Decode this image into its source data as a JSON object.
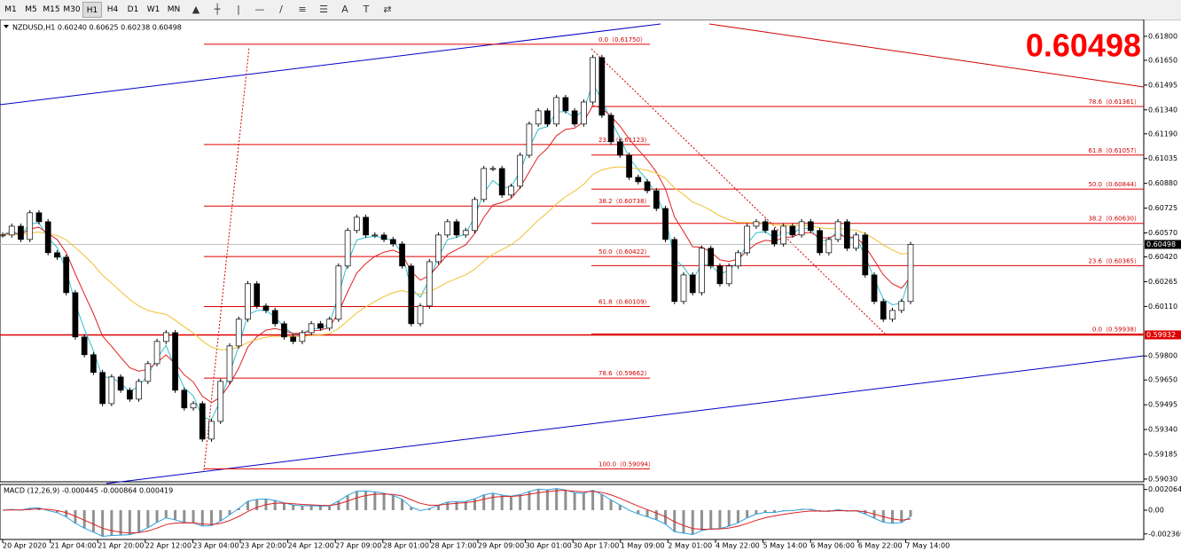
{
  "toolbar": {
    "timeframes": [
      "M1",
      "M5",
      "M15",
      "M30",
      "H1",
      "H4",
      "D1",
      "W1",
      "MN"
    ],
    "active": "H1"
  },
  "header": "NZDUSD,H1  0.60240 0.60625 0.60238 0.60498",
  "big_price": "0.60498",
  "price_axis": {
    "ylim": [
      0.59013,
      0.61905
    ],
    "ticks": [
      {
        "value": 0.618,
        "label": "0.61800"
      },
      {
        "value": 0.6165,
        "label": "0.61650"
      },
      0.61495,
      {
        "value": 0.6134,
        "label": "0.61340"
      },
      {
        "value": 0.6119,
        "label": "0.61190"
      },
      0.61035,
      {
        "value": 0.6088,
        "label": "0.60880"
      },
      0.60725,
      {
        "value": 0.6057,
        "label": "0.60570"
      },
      {
        "value": 0.6042,
        "label": "0.60420"
      },
      0.60265,
      {
        "value": 0.6011,
        "label": "0.60110"
      },
      {
        "value": 0.598,
        "label": "0.59800"
      },
      {
        "value": 0.5965,
        "label": "0.59650"
      },
      0.59495,
      {
        "value": 0.5934,
        "label": "0.59340"
      },
      0.59185,
      {
        "value": 0.5903,
        "label": "0.59030"
      }
    ],
    "current": 0.60498,
    "marked": 0.59932
  },
  "time_labels": [
    "20 Apr 2020",
    "21 Apr 04:00",
    "21 Apr 20:00",
    "22 Apr 12:00",
    "23 Apr 04:00",
    "23 Apr 20:00",
    "24 Apr 12:00",
    "27 Apr 09:00",
    "28 Apr 01:00",
    "28 Apr 17:00",
    "29 Apr 09:00",
    "30 Apr 01:00",
    "30 Apr 17:00",
    "1 May 09:00",
    "2 May 01:00",
    "4 May 22:00",
    "5 May 14:00",
    "6 May 06:00",
    "6 May 22:00",
    "7 May 14:00"
  ],
  "closes": [
    0.60557,
    0.60612,
    0.60529,
    0.60696,
    0.6064,
    0.60446,
    0.60418,
    0.60196,
    0.59919,
    0.59808,
    0.59697,
    0.59502,
    0.59669,
    0.59586,
    0.5953,
    0.59641,
    0.59752,
    0.59891,
    0.59946,
    0.59586,
    0.59475,
    0.59502,
    0.5928,
    0.59391,
    0.59641,
    0.59863,
    0.6003,
    0.60252,
    0.60113,
    0.60085,
    0.60002,
    0.59919,
    0.59891,
    0.59946,
    0.60002,
    0.59974,
    0.6003,
    0.60363,
    0.60585,
    0.60668,
    0.60557,
    0.60557,
    0.60529,
    0.60501,
    0.60363,
    0.60002,
    0.60113,
    0.6039,
    0.60557,
    0.6064,
    0.60557,
    0.60585,
    0.60779,
    0.60973,
    0.60973,
    0.60807,
    0.60862,
    0.61056,
    0.61251,
    0.61334,
    0.61251,
    0.61417,
    0.61334,
    0.61251,
    0.61389,
    0.61667,
    0.61306,
    0.6114,
    0.61056,
    0.60918,
    0.6089,
    0.60834,
    0.60723,
    0.60529,
    0.60141,
    0.60307,
    0.60196,
    0.60474,
    0.60363,
    0.60252,
    0.60363,
    0.60446,
    0.60612,
    0.6064,
    0.60585,
    0.60501,
    0.60612,
    0.60557,
    0.6064,
    0.60585,
    0.60446,
    0.60529,
    0.6064,
    0.60474,
    0.60557,
    0.60307,
    0.60141,
    0.6003,
    0.60085,
    0.60141,
    0.60498
  ],
  "fib_left": [
    {
      "value": 0.6175,
      "label": "0.0（0.61750）"
    },
    {
      "value": 0.61123,
      "label": "23.6（0.61123）"
    },
    {
      "value": 0.60738,
      "label": "38.2（0.60738）"
    },
    {
      "value": 0.60422,
      "label": "50.0（0.60422）"
    },
    {
      "value": 0.60109,
      "label": "61.8（0.60109）"
    },
    {
      "value": 0.59662,
      "label": "78.6（0.59662）"
    },
    {
      "value": 0.59094,
      "label": "100.0（0.59094）"
    }
  ],
  "fib_right": [
    {
      "value": 0.61361,
      "label": "78.6（0.61361）"
    },
    {
      "value": 0.61057,
      "label": "61.8（0.61057）"
    },
    {
      "value": 0.60844,
      "label": "50.0（0.60844）"
    },
    {
      "value": 0.6063,
      "label": "38.2（0.60630）"
    },
    {
      "value": 0.60365,
      "label": "23.6（0.60365）"
    },
    {
      "value": 0.59938,
      "label": "0.0（0.59938）"
    }
  ],
  "macd": {
    "label": "MACD (12,26,9) -0.000445 -0.000864 0.000419",
    "ylim": [
      -0.00292,
      0.002566
    ],
    "ticks": [
      0.002064,
      {
        "value": 0,
        "label": "0.00"
      },
      -0.002369
    ]
  }
}
